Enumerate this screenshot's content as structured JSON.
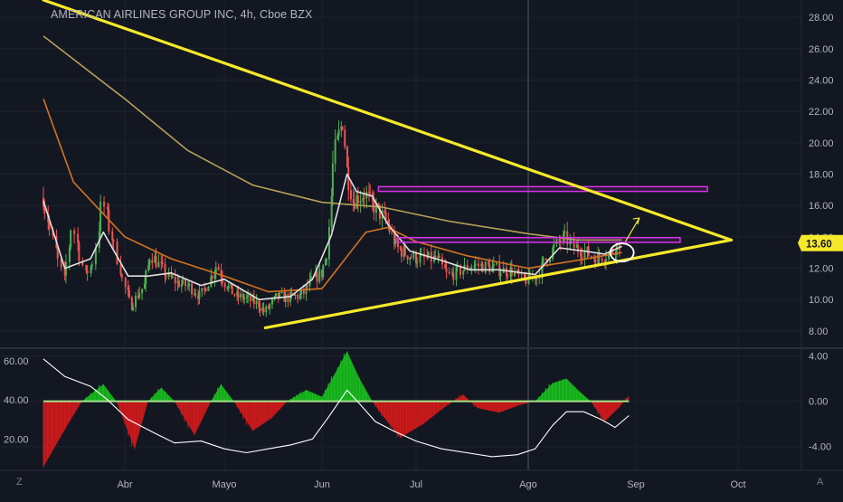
{
  "header": {
    "symbol": "AMERICAN AIRLINES GROUP INC",
    "interval": "4h",
    "exchange": "Cboe BZX",
    "sep": ", "
  },
  "badges": {
    "left": "Z",
    "right": "A"
  },
  "colors": {
    "background": "#131722",
    "grid": "#1e222d",
    "trendline": "#f5e92a",
    "zone": "#d633e6",
    "bull_candle": "#4caf50",
    "bear_candle": "#ef5350",
    "ma_fast": "#e0e0e0",
    "ma_mid": "#d4731e",
    "ma_slow": "#b5a255",
    "osc_positive": "#19c31c",
    "osc_negative": "#d91a1a",
    "osc_line": "#ffffff",
    "osc_zero": "#a3e389",
    "price_badge": "#f5e92a"
  },
  "chart_data": [
    {
      "type": "candlestick",
      "title": "AMERICAN AIRLINES GROUP INC, 4h, Cboe BZX",
      "x_ticks": [
        "Abr",
        "Mayo",
        "Jun",
        "Jul",
        "Ago",
        "Sep",
        "Oct"
      ],
      "y_ticks": [
        "28.00",
        "26.00",
        "24.00",
        "22.00",
        "20.00",
        "18.00",
        "16.00",
        "14.00",
        "12.00",
        "10.00",
        "8.00"
      ],
      "ylim": [
        6.9,
        29.1
      ],
      "last_price": "13.60",
      "price_path": [
        {
          "date": "2020-03-13",
          "price": 16.5
        },
        {
          "date": "2020-03-16",
          "price": 13.2
        },
        {
          "date": "2020-03-18",
          "price": 11.2
        },
        {
          "date": "2020-03-20",
          "price": 14.8
        },
        {
          "date": "2020-03-23",
          "price": 11.5
        },
        {
          "date": "2020-03-25",
          "price": 12.5
        },
        {
          "date": "2020-03-27",
          "price": 16.3
        },
        {
          "date": "2020-03-30",
          "price": 13.2
        },
        {
          "date": "2020-04-01",
          "price": 11.0
        },
        {
          "date": "2020-04-03",
          "price": 9.6
        },
        {
          "date": "2020-04-07",
          "price": 10.9
        },
        {
          "date": "2020-04-09",
          "price": 12.9
        },
        {
          "date": "2020-04-14",
          "price": 11.5
        },
        {
          "date": "2020-04-17",
          "price": 11.1
        },
        {
          "date": "2020-04-21",
          "price": 10.8
        },
        {
          "date": "2020-04-24",
          "price": 10.2
        },
        {
          "date": "2020-04-29",
          "price": 12.2
        },
        {
          "date": "2020-05-01",
          "price": 11.2
        },
        {
          "date": "2020-05-05",
          "price": 10.2
        },
        {
          "date": "2020-05-08",
          "price": 10.1
        },
        {
          "date": "2020-05-12",
          "price": 9.7
        },
        {
          "date": "2020-05-14",
          "price": 9.2
        },
        {
          "date": "2020-05-18",
          "price": 10.2
        },
        {
          "date": "2020-05-21",
          "price": 10.1
        },
        {
          "date": "2020-05-26",
          "price": 10.3
        },
        {
          "date": "2020-05-28",
          "price": 11.0
        },
        {
          "date": "2020-06-01",
          "price": 11.7
        },
        {
          "date": "2020-06-03",
          "price": 13.1
        },
        {
          "date": "2020-06-05",
          "price": 19.3
        },
        {
          "date": "2020-06-08",
          "price": 21.5
        },
        {
          "date": "2020-06-09",
          "price": 18.4
        },
        {
          "date": "2020-06-11",
          "price": 16.3
        },
        {
          "date": "2020-06-15",
          "price": 16.8
        },
        {
          "date": "2020-06-17",
          "price": 16.1
        },
        {
          "date": "2020-06-19",
          "price": 15.7
        },
        {
          "date": "2020-06-22",
          "price": 14.9
        },
        {
          "date": "2020-06-25",
          "price": 13.3
        },
        {
          "date": "2020-06-29",
          "price": 12.8
        },
        {
          "date": "2020-07-02",
          "price": 12.6
        },
        {
          "date": "2020-07-07",
          "price": 12.6
        },
        {
          "date": "2020-07-10",
          "price": 11.5
        },
        {
          "date": "2020-07-14",
          "price": 11.9
        },
        {
          "date": "2020-07-17",
          "price": 12.2
        },
        {
          "date": "2020-07-21",
          "price": 12.1
        },
        {
          "date": "2020-07-24",
          "price": 11.9
        },
        {
          "date": "2020-07-28",
          "price": 11.8
        },
        {
          "date": "2020-07-31",
          "price": 11.2
        },
        {
          "date": "2020-08-04",
          "price": 11.6
        },
        {
          "date": "2020-08-06",
          "price": 12.5
        },
        {
          "date": "2020-08-10",
          "price": 13.7
        },
        {
          "date": "2020-08-12",
          "price": 13.9
        },
        {
          "date": "2020-08-14",
          "price": 13.4
        },
        {
          "date": "2020-08-18",
          "price": 13.0
        },
        {
          "date": "2020-08-21",
          "price": 12.6
        },
        {
          "date": "2020-08-25",
          "price": 13.0
        },
        {
          "date": "2020-08-27",
          "price": 13.5
        },
        {
          "date": "2020-08-28",
          "price": 13.6
        }
      ],
      "ma_fast": [
        {
          "date": "2020-03-13",
          "price": 16.3
        },
        {
          "date": "2020-03-18",
          "price": 12.0
        },
        {
          "date": "2020-03-24",
          "price": 12.6
        },
        {
          "date": "2020-03-27",
          "price": 14.3
        },
        {
          "date": "2020-04-02",
          "price": 11.5
        },
        {
          "date": "2020-04-08",
          "price": 11.5
        },
        {
          "date": "2020-04-15",
          "price": 11.7
        },
        {
          "date": "2020-04-24",
          "price": 10.9
        },
        {
          "date": "2020-05-01",
          "price": 11.3
        },
        {
          "date": "2020-05-12",
          "price": 10.0
        },
        {
          "date": "2020-05-22",
          "price": 10.2
        },
        {
          "date": "2020-05-29",
          "price": 11.3
        },
        {
          "date": "2020-06-04",
          "price": 14.1
        },
        {
          "date": "2020-06-09",
          "price": 18.0
        },
        {
          "date": "2020-06-12",
          "price": 16.9
        },
        {
          "date": "2020-06-17",
          "price": 16.6
        },
        {
          "date": "2020-06-22",
          "price": 14.8
        },
        {
          "date": "2020-06-29",
          "price": 13.1
        },
        {
          "date": "2020-07-08",
          "price": 12.5
        },
        {
          "date": "2020-07-16",
          "price": 11.9
        },
        {
          "date": "2020-07-24",
          "price": 11.9
        },
        {
          "date": "2020-08-03",
          "price": 11.6
        },
        {
          "date": "2020-08-10",
          "price": 13.3
        },
        {
          "date": "2020-08-17",
          "price": 13.1
        },
        {
          "date": "2020-08-23",
          "price": 12.9
        },
        {
          "date": "2020-08-28",
          "price": 13.4
        }
      ],
      "ma_mid": [
        {
          "date": "2020-03-13",
          "price": 22.8
        },
        {
          "date": "2020-03-20",
          "price": 17.5
        },
        {
          "date": "2020-04-01",
          "price": 14.0
        },
        {
          "date": "2020-04-15",
          "price": 12.6
        },
        {
          "date": "2020-05-01",
          "price": 11.5
        },
        {
          "date": "2020-05-15",
          "price": 10.5
        },
        {
          "date": "2020-06-01",
          "price": 10.7
        },
        {
          "date": "2020-06-08",
          "price": 12.5
        },
        {
          "date": "2020-06-15",
          "price": 14.3
        },
        {
          "date": "2020-06-22",
          "price": 14.6
        },
        {
          "date": "2020-07-01",
          "price": 13.7
        },
        {
          "date": "2020-07-15",
          "price": 12.8
        },
        {
          "date": "2020-08-01",
          "price": 12.0
        },
        {
          "date": "2020-08-15",
          "price": 12.5
        },
        {
          "date": "2020-08-28",
          "price": 13.0
        }
      ],
      "ma_slow": [
        {
          "date": "2020-03-13",
          "price": 26.8
        },
        {
          "date": "2020-04-01",
          "price": 22.8
        },
        {
          "date": "2020-04-20",
          "price": 19.5
        },
        {
          "date": "2020-05-10",
          "price": 17.3
        },
        {
          "date": "2020-06-01",
          "price": 16.2
        },
        {
          "date": "2020-06-20",
          "price": 15.9
        },
        {
          "date": "2020-07-10",
          "price": 15.0
        },
        {
          "date": "2020-08-01",
          "price": 14.2
        },
        {
          "date": "2020-08-15",
          "price": 13.8
        },
        {
          "date": "2020-08-28",
          "price": 13.8
        }
      ],
      "trendlines": [
        {
          "from": {
            "date": "2020-03-13",
            "price": 29.1
          },
          "to": {
            "date": "2020-09-29",
            "price": 13.8
          }
        },
        {
          "from": {
            "date": "2020-05-14",
            "price": 8.2
          },
          "to": {
            "date": "2020-09-29",
            "price": 13.8
          }
        }
      ],
      "zones": [
        {
          "from": {
            "date": "2020-06-19",
            "price": 17.2
          },
          "to": {
            "date": "2020-09-22",
            "price": 16.9
          }
        },
        {
          "from": {
            "date": "2020-06-25",
            "price": 13.95
          },
          "to": {
            "date": "2020-09-14",
            "price": 13.65
          }
        }
      ],
      "arrow": {
        "from": {
          "date": "2020-08-29",
          "price": 13.7
        },
        "to": {
          "date": "2020-09-02",
          "price": 15.2
        }
      },
      "marker_circle": {
        "date": "2020-08-28",
        "price": 13.0
      },
      "crosshair_date": "2020-08-01"
    },
    {
      "type": "area",
      "name": "oscillator",
      "y_ticks_right": [
        "4.00",
        "0.00",
        "-4.00"
      ],
      "y_ticks_left": [
        "60.00",
        "40.00",
        "20.00"
      ],
      "ylim_right": [
        -6.1,
        4.6
      ],
      "ylim_left": [
        4,
        66
      ],
      "histogram": [
        {
          "date": "2020-03-13",
          "value": -5.8
        },
        {
          "date": "2020-03-18",
          "value": -2.5
        },
        {
          "date": "2020-03-22",
          "value": 0.0
        },
        {
          "date": "2020-03-27",
          "value": 1.5
        },
        {
          "date": "2020-03-30",
          "value": 0.0
        },
        {
          "date": "2020-04-04",
          "value": -4.2
        },
        {
          "date": "2020-04-08",
          "value": 0.0
        },
        {
          "date": "2020-04-12",
          "value": 1.2
        },
        {
          "date": "2020-04-16",
          "value": 0.0
        },
        {
          "date": "2020-04-22",
          "value": -3.0
        },
        {
          "date": "2020-04-27",
          "value": 0.0
        },
        {
          "date": "2020-04-30",
          "value": 1.5
        },
        {
          "date": "2020-05-04",
          "value": 0.0
        },
        {
          "date": "2020-05-10",
          "value": -2.6
        },
        {
          "date": "2020-05-16",
          "value": -1.5
        },
        {
          "date": "2020-05-21",
          "value": 0.0
        },
        {
          "date": "2020-05-27",
          "value": 1.0
        },
        {
          "date": "2020-06-01",
          "value": 0.4
        },
        {
          "date": "2020-06-05",
          "value": 2.4
        },
        {
          "date": "2020-06-09",
          "value": 4.4
        },
        {
          "date": "2020-06-13",
          "value": 2.0
        },
        {
          "date": "2020-06-17",
          "value": 0.0
        },
        {
          "date": "2020-06-21",
          "value": -1.5
        },
        {
          "date": "2020-06-26",
          "value": -3.2
        },
        {
          "date": "2020-07-03",
          "value": -2.0
        },
        {
          "date": "2020-07-09",
          "value": -0.5
        },
        {
          "date": "2020-07-14",
          "value": 0.6
        },
        {
          "date": "2020-07-18",
          "value": -0.6
        },
        {
          "date": "2020-07-24",
          "value": -1.0
        },
        {
          "date": "2020-07-30",
          "value": -0.3
        },
        {
          "date": "2020-08-03",
          "value": 0.0
        },
        {
          "date": "2020-08-08",
          "value": 1.6
        },
        {
          "date": "2020-08-12",
          "value": 2.0
        },
        {
          "date": "2020-08-16",
          "value": 0.8
        },
        {
          "date": "2020-08-19",
          "value": 0.0
        },
        {
          "date": "2020-08-23",
          "value": -1.8
        },
        {
          "date": "2020-08-27",
          "value": -0.6
        },
        {
          "date": "2020-08-30",
          "value": 0.5
        }
      ],
      "line": [
        {
          "date": "2020-03-13",
          "value": 61
        },
        {
          "date": "2020-03-18",
          "value": 52
        },
        {
          "date": "2020-03-24",
          "value": 47
        },
        {
          "date": "2020-03-28",
          "value": 40
        },
        {
          "date": "2020-04-02",
          "value": 30
        },
        {
          "date": "2020-04-10",
          "value": 23
        },
        {
          "date": "2020-04-16",
          "value": 18
        },
        {
          "date": "2020-04-24",
          "value": 19
        },
        {
          "date": "2020-05-01",
          "value": 15
        },
        {
          "date": "2020-05-08",
          "value": 13
        },
        {
          "date": "2020-05-15",
          "value": 15
        },
        {
          "date": "2020-05-22",
          "value": 17
        },
        {
          "date": "2020-05-29",
          "value": 20
        },
        {
          "date": "2020-06-03",
          "value": 31
        },
        {
          "date": "2020-06-09",
          "value": 45
        },
        {
          "date": "2020-06-13",
          "value": 38
        },
        {
          "date": "2020-06-18",
          "value": 29
        },
        {
          "date": "2020-06-24",
          "value": 24
        },
        {
          "date": "2020-07-01",
          "value": 19
        },
        {
          "date": "2020-07-08",
          "value": 15
        },
        {
          "date": "2020-07-15",
          "value": 13
        },
        {
          "date": "2020-07-22",
          "value": 11
        },
        {
          "date": "2020-07-29",
          "value": 12
        },
        {
          "date": "2020-08-03",
          "value": 15
        },
        {
          "date": "2020-08-08",
          "value": 27
        },
        {
          "date": "2020-08-12",
          "value": 34
        },
        {
          "date": "2020-08-17",
          "value": 34
        },
        {
          "date": "2020-08-22",
          "value": 30
        },
        {
          "date": "2020-08-26",
          "value": 26
        },
        {
          "date": "2020-08-30",
          "value": 32
        }
      ],
      "zero_line": 0.0
    }
  ]
}
